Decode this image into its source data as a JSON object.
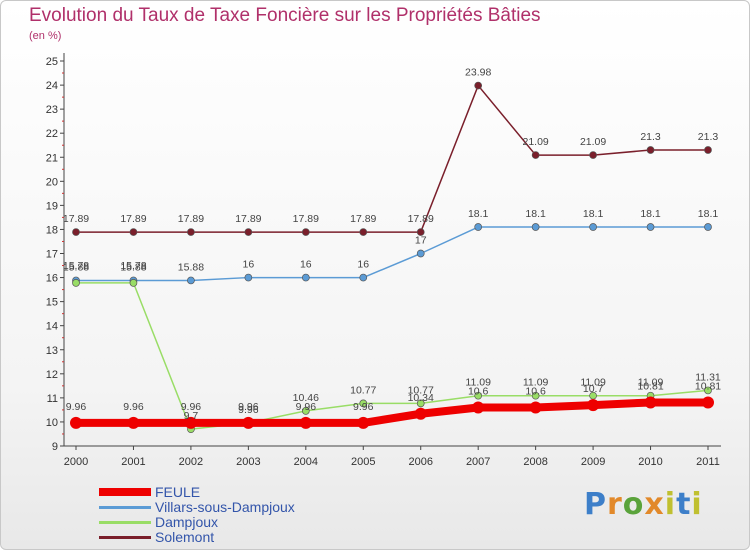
{
  "header": {
    "title": "Evolution du Taux de Taxe Foncière sur les Propriétés Bâties",
    "subtitle": "(en %)"
  },
  "logo": {
    "text": "Proxiti"
  },
  "chart_data": {
    "type": "line",
    "x": [
      "2000",
      "2001",
      "2002",
      "2003",
      "2004",
      "2005",
      "2006",
      "2007",
      "2008",
      "2009",
      "2010",
      "2011"
    ],
    "ylim": [
      9,
      25
    ],
    "yticks": [
      "9",
      "10",
      "11",
      "12",
      "13",
      "14",
      "15",
      "16",
      "17",
      "18",
      "19",
      "20",
      "21",
      "22",
      "23",
      "24",
      "25"
    ],
    "grid": false,
    "legend_position": "bottom-left",
    "series": [
      {
        "name": "FEULE",
        "color": "#ee0000",
        "values": [
          9.96,
          9.96,
          9.96,
          9.96,
          9.96,
          9.96,
          10.34,
          10.6,
          10.6,
          10.7,
          10.81,
          10.81
        ],
        "labels": [
          "9.96",
          "9.96",
          "9.96",
          "9.96",
          "9.96",
          "9.96",
          "10.34",
          "10.6",
          "10.6",
          "10.7",
          "10.81",
          "10.81"
        ]
      },
      {
        "name": "Villars-sous-Dampjoux",
        "color": "#5b9bd5",
        "values": [
          15.88,
          15.88,
          15.88,
          16,
          16,
          16,
          17,
          18.1,
          18.1,
          18.1,
          18.1,
          18.1
        ],
        "labels": [
          "15.88",
          "15.88",
          "15.88",
          "16",
          "16",
          "16",
          "17",
          "18.1",
          "18.1",
          "18.1",
          "18.1",
          "18.1"
        ]
      },
      {
        "name": "Dampjoux",
        "color": "#99dd66",
        "values": [
          15.78,
          15.78,
          9.7,
          9.96,
          10.46,
          10.77,
          10.77,
          11.09,
          11.09,
          11.09,
          11.09,
          11.31
        ],
        "labels": [
          "15.78",
          "15.78",
          "9.7",
          "9.96",
          "10.46",
          "10.77",
          "10.77",
          "11.09",
          "11.09",
          "11.09",
          "11.09",
          "11.31"
        ]
      },
      {
        "name": "Solemont",
        "color": "#7a1f2b",
        "values": [
          17.89,
          17.89,
          17.89,
          17.89,
          17.89,
          17.89,
          17.89,
          23.98,
          21.09,
          21.09,
          21.3,
          21.3
        ],
        "labels": [
          "17.89",
          "17.89",
          "17.89",
          "17.89",
          "17.89",
          "17.89",
          "17.89",
          "23.98",
          "21.09",
          "21.09",
          "21.3",
          "21.3"
        ]
      }
    ]
  }
}
